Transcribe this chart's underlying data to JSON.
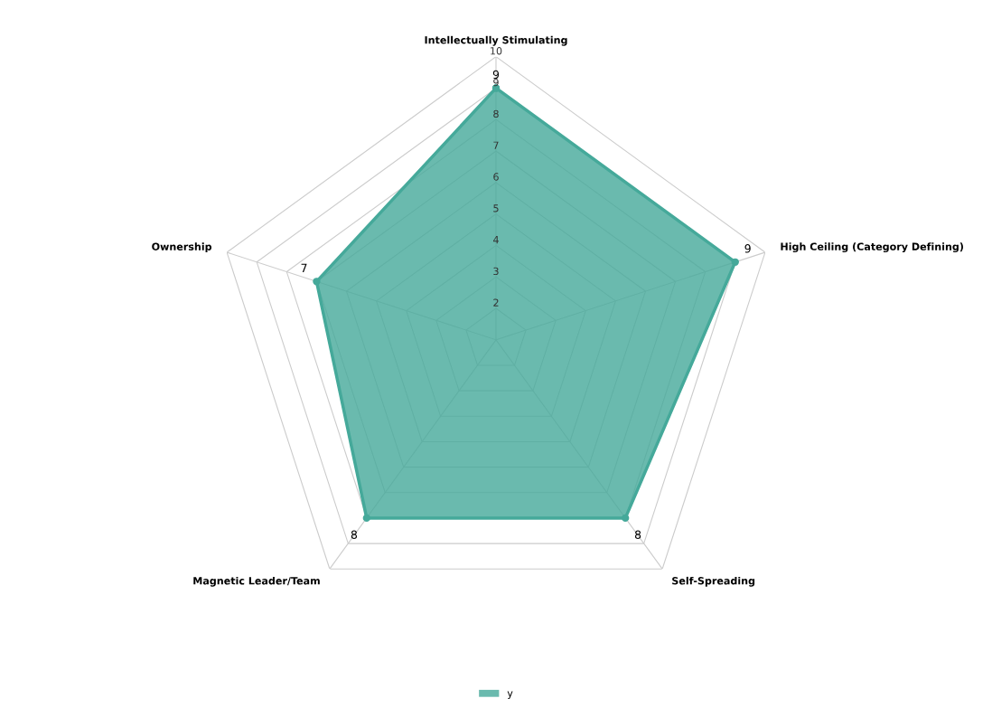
{
  "chart_data": {
    "type": "radar",
    "categories": [
      "Intellectually Stimulating",
      "High Ceiling (Category Defining)",
      "Self-Spreading",
      "Magnetic Leader/Team",
      "Ownership"
    ],
    "series": [
      {
        "name": "y",
        "color": "#45a99a",
        "values": [
          9,
          9,
          8,
          8,
          7
        ]
      }
    ],
    "ylim": [
      1,
      10
    ],
    "yticks": [
      2,
      3,
      4,
      5,
      6,
      7,
      8,
      9,
      10
    ],
    "grid": true,
    "legend": "bottom",
    "data_labels": true,
    "marker": "circle"
  }
}
